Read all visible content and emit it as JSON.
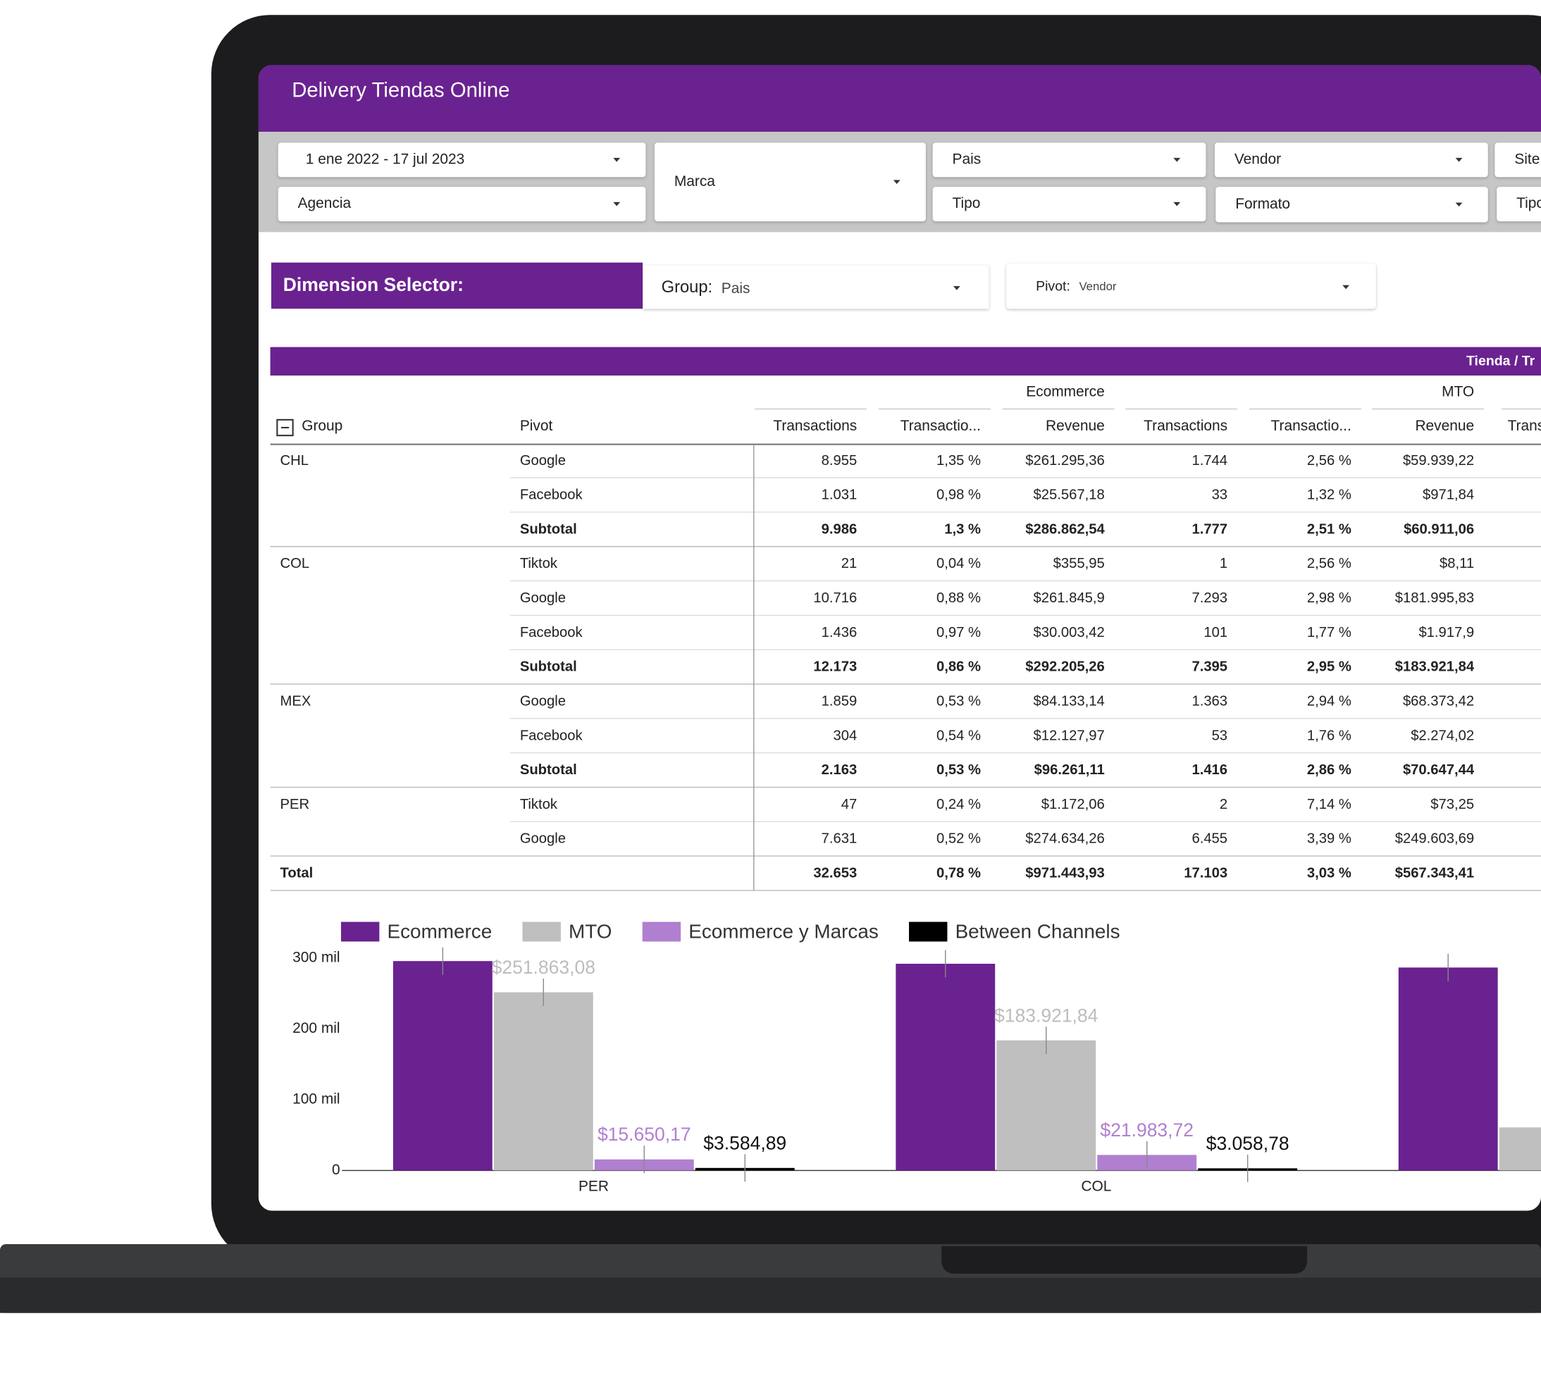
{
  "header": {
    "title": "Delivery Tiendas Online"
  },
  "filters": [
    "1 ene 2022 - 17 jul 2023",
    "Agencia",
    "Marca",
    "Pais",
    "Tipo",
    "Vendor",
    "Formato",
    "Site",
    "Tipo"
  ],
  "dimension_selector": {
    "title": "Dimension Selector:",
    "group_label": "Group:",
    "group_value": "Pais",
    "pivot_label": "Pivot:",
    "pivot_value": "Vendor"
  },
  "table": {
    "banner": "Tienda / Tr",
    "column_groups": [
      "Ecommerce",
      "MTO"
    ],
    "columns": [
      "Group",
      "Pivot",
      "Transactions",
      "Transactio...",
      "Revenue",
      "Transactions",
      "Transactio...",
      "Revenue",
      "Trans"
    ],
    "groups": [
      {
        "label": "CHL",
        "rows": [
          {
            "pivot": "Google",
            "cells": [
              "8.955",
              "1,35 %",
              "$261.295,36",
              "1.744",
              "2,56 %",
              "$59.939,22"
            ]
          },
          {
            "pivot": "Facebook",
            "cells": [
              "1.031",
              "0,98 %",
              "$25.567,18",
              "33",
              "1,32 %",
              "$971,84"
            ]
          }
        ],
        "subtotal": {
          "label": "Subtotal",
          "cells": [
            "9.986",
            "1,3 %",
            "$286.862,54",
            "1.777",
            "2,51 %",
            "$60.911,06"
          ]
        }
      },
      {
        "label": "COL",
        "rows": [
          {
            "pivot": "Tiktok",
            "cells": [
              "21",
              "0,04 %",
              "$355,95",
              "1",
              "2,56 %",
              "$8,11"
            ]
          },
          {
            "pivot": "Google",
            "cells": [
              "10.716",
              "0,88 %",
              "$261.845,9",
              "7.293",
              "2,98 %",
              "$181.995,83"
            ]
          },
          {
            "pivot": "Facebook",
            "cells": [
              "1.436",
              "0,97 %",
              "$30.003,42",
              "101",
              "1,77 %",
              "$1.917,9"
            ]
          }
        ],
        "subtotal": {
          "label": "Subtotal",
          "cells": [
            "12.173",
            "0,86 %",
            "$292.205,26",
            "7.395",
            "2,95 %",
            "$183.921,84"
          ]
        }
      },
      {
        "label": "MEX",
        "rows": [
          {
            "pivot": "Google",
            "cells": [
              "1.859",
              "0,53 %",
              "$84.133,14",
              "1.363",
              "2,94 %",
              "$68.373,42"
            ]
          },
          {
            "pivot": "Facebook",
            "cells": [
              "304",
              "0,54 %",
              "$12.127,97",
              "53",
              "1,76 %",
              "$2.274,02"
            ]
          }
        ],
        "subtotal": {
          "label": "Subtotal",
          "cells": [
            "2.163",
            "0,53 %",
            "$96.261,11",
            "1.416",
            "2,86 %",
            "$70.647,44"
          ]
        }
      },
      {
        "label": "PER",
        "rows": [
          {
            "pivot": "Tiktok",
            "cells": [
              "47",
              "0,24 %",
              "$1.172,06",
              "2",
              "7,14 %",
              "$73,25"
            ]
          },
          {
            "pivot": "Google",
            "cells": [
              "7.631",
              "0,52 %",
              "$274.634,26",
              "6.455",
              "3,39 %",
              "$249.603,69"
            ]
          }
        ]
      }
    ],
    "total": {
      "label": "Total",
      "cells": [
        "32.653",
        "0,78 %",
        "$971.443,93",
        "17.103",
        "3,03 %",
        "$567.343,41"
      ]
    }
  },
  "chart_data": {
    "type": "bar",
    "categories": [
      "PER",
      "COL",
      null
    ],
    "series": [
      {
        "name": "Ecommerce",
        "color": "#6a2290",
        "values": [
          296000,
          292205.26,
          286862.54
        ],
        "value_labels": [
          null,
          null,
          null
        ]
      },
      {
        "name": "MTO",
        "color": "#bfbfbf",
        "label_color": "#bdbdbd",
        "values": [
          251863.08,
          183921.84,
          60911.06
        ],
        "value_labels": [
          "$251.863,08",
          "$183.921,84",
          null
        ]
      },
      {
        "name": "Ecommerce y Marcas",
        "color": "#b07fd0",
        "label_color": "#b07fd0",
        "values": [
          15650.17,
          21983.72,
          null
        ],
        "value_labels": [
          "$15.650,17",
          "$21.983,72",
          null
        ]
      },
      {
        "name": "Between Channels",
        "color": "#000000",
        "label_color": "#111111",
        "values": [
          3584.89,
          3058.78,
          null
        ],
        "value_labels": [
          "$3.584,89",
          "$3.058,78",
          null
        ]
      }
    ],
    "ylim": [
      0,
      300000
    ],
    "yticks": [
      0,
      {
        "value": 100000,
        "label": "100 mil"
      },
      {
        "value": 200000,
        "label": "200 mil"
      },
      {
        "value": 300000,
        "label": "300 mil"
      }
    ],
    "legend": "top"
  }
}
